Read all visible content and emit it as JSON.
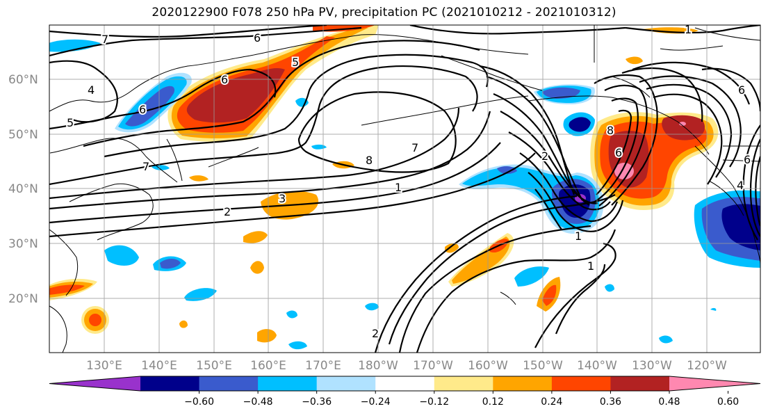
{
  "title": "2020122900 F078 250 hPa PV, precipitation PC (2021010212 - 2021010312)",
  "lat_labels": [
    "60°N",
    "50°N",
    "40°N",
    "30°N",
    "20°N"
  ],
  "lon_labels": [
    "130°E",
    "140°E",
    "150°E",
    "160°E",
    "170°E",
    "180°W",
    "170°W",
    "160°W",
    "150°W",
    "140°W",
    "130°W",
    "120°W"
  ],
  "colorbar": {
    "tick_labels": [
      "−0.60",
      "−0.48",
      "−0.36",
      "−0.24",
      "−0.12",
      "0.12",
      "0.24",
      "0.36",
      "0.48",
      "0.60"
    ],
    "colors": [
      "#9932cc",
      "#00008b",
      "#3a5bcd",
      "#00bfff",
      "#b0e2ff",
      "#ffffff",
      "#ffea8a",
      "#ffa500",
      "#ff4500",
      "#b22222",
      "#ff88b0"
    ]
  },
  "contour_labels": {
    "c7a": "7",
    "c6a": "6",
    "c6b": "6",
    "c4a": "4",
    "c5a": "5",
    "c5b": "5",
    "c6c": "6",
    "c7b": "7",
    "c8a": "8",
    "c7c": "7",
    "c1a": "1",
    "c2a": "2",
    "c3a": "3",
    "c1b": "1",
    "c1c": "1",
    "c2b": "2",
    "c8b": "8",
    "c6d": "6",
    "c2c": "2",
    "c1d": "1",
    "c6e": "6",
    "c4b": "4",
    "c6f": "6"
  }
}
